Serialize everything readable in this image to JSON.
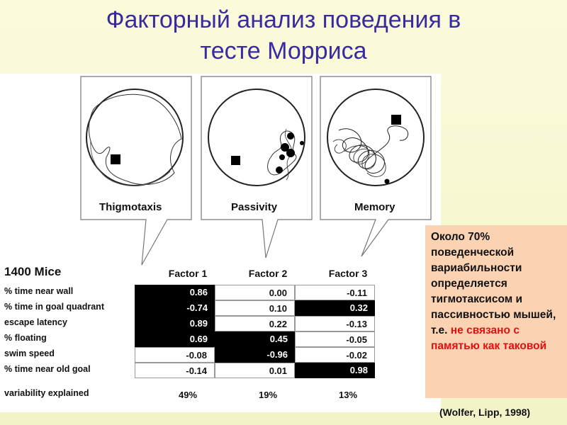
{
  "title_line1": "Факторный анализ поведения в",
  "title_line2": "тесте Морриса",
  "panels": [
    "Thigmotaxis",
    "Passivity",
    "Memory"
  ],
  "table": {
    "mice_label": "1400 Mice",
    "headers": [
      "Factor 1",
      "Factor 2",
      "Factor 3"
    ],
    "rows": [
      {
        "label": "% time near wall",
        "values": [
          "0.86",
          "0.00",
          "-0.11"
        ],
        "highlight": [
          true,
          false,
          false
        ]
      },
      {
        "label": "% time in goal quadrant",
        "values": [
          "-0.74",
          "0.10",
          "0.32"
        ],
        "highlight": [
          true,
          false,
          true
        ]
      },
      {
        "label": "escape latency",
        "values": [
          "0.89",
          "0.22",
          "-0.13"
        ],
        "highlight": [
          true,
          false,
          false
        ]
      },
      {
        "label": "% floating",
        "values": [
          "0.69",
          "0.45",
          "-0.05"
        ],
        "highlight": [
          true,
          true,
          false
        ]
      },
      {
        "label": "swim speed",
        "values": [
          "-0.08",
          "-0.96",
          "-0.02"
        ],
        "highlight": [
          false,
          true,
          false
        ]
      },
      {
        "label": "% time near old goal",
        "values": [
          "-0.14",
          "0.01",
          "0.98"
        ],
        "highlight": [
          false,
          false,
          true
        ]
      }
    ],
    "variability_label": "variability explained",
    "variability": [
      "49%",
      "19%",
      "13%"
    ]
  },
  "note": {
    "text_black": "Около 70% поведенческой вариабильности определяется тигмотаксисом и пассивностью мышей, т.е.",
    "text_red": "не связано с памятью как таковой"
  },
  "citation": "(Wolfer, Lipp, 1998)",
  "colors": {
    "title": "#3a2aa0",
    "note_bg": "#fcd3b2",
    "note_red": "#e01010"
  }
}
